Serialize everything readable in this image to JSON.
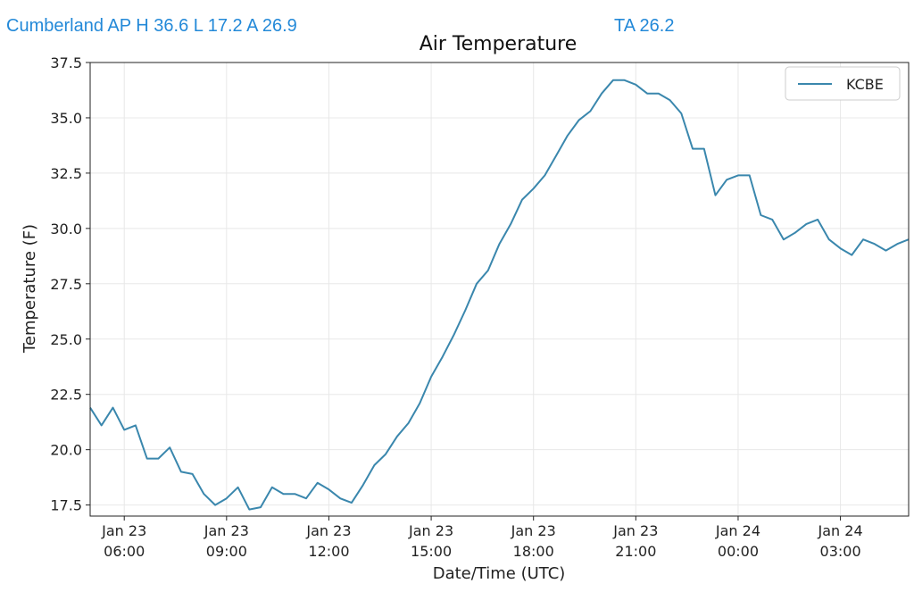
{
  "header": {
    "station_summary": "Cumberland AP H 36.6 L 17.2 A 26.9",
    "ta_summary": "TA 26.2"
  },
  "colors": {
    "header_text": "#2389d8",
    "series_line": "#3a87ad",
    "grid": "#e8e8e8"
  },
  "chart_data": {
    "type": "line",
    "title": "Air Temperature",
    "xlabel": "Date/Time (UTC)",
    "ylabel": "Temperature (F)",
    "ylim": [
      17,
      37.5
    ],
    "xlim": [
      "2021-01-23T05:00",
      "2021-01-24T05:00"
    ],
    "yticks": [
      "17.5",
      "20.0",
      "22.5",
      "25.0",
      "27.5",
      "30.0",
      "32.5",
      "35.0",
      "37.5"
    ],
    "xticks": [
      {
        "date": "Jan 23",
        "time": "06:00"
      },
      {
        "date": "Jan 23",
        "time": "09:00"
      },
      {
        "date": "Jan 23",
        "time": "12:00"
      },
      {
        "date": "Jan 23",
        "time": "15:00"
      },
      {
        "date": "Jan 23",
        "time": "18:00"
      },
      {
        "date": "Jan 23",
        "time": "21:00"
      },
      {
        "date": "Jan 24",
        "time": "00:00"
      },
      {
        "date": "Jan 24",
        "time": "03:00"
      }
    ],
    "grid": true,
    "legend_position": "top-right",
    "series": [
      {
        "name": "KCBE",
        "x": [
          "2021-01-23T05:00",
          "2021-01-23T05:20",
          "2021-01-23T05:40",
          "2021-01-23T06:00",
          "2021-01-23T06:20",
          "2021-01-23T06:40",
          "2021-01-23T07:00",
          "2021-01-23T07:20",
          "2021-01-23T07:40",
          "2021-01-23T08:00",
          "2021-01-23T08:20",
          "2021-01-23T08:40",
          "2021-01-23T09:00",
          "2021-01-23T09:20",
          "2021-01-23T09:40",
          "2021-01-23T10:00",
          "2021-01-23T10:20",
          "2021-01-23T10:40",
          "2021-01-23T11:00",
          "2021-01-23T11:20",
          "2021-01-23T11:40",
          "2021-01-23T12:00",
          "2021-01-23T12:20",
          "2021-01-23T12:40",
          "2021-01-23T13:00",
          "2021-01-23T13:20",
          "2021-01-23T13:40",
          "2021-01-23T14:00",
          "2021-01-23T14:20",
          "2021-01-23T14:40",
          "2021-01-23T15:00",
          "2021-01-23T15:20",
          "2021-01-23T15:40",
          "2021-01-23T16:00",
          "2021-01-23T16:20",
          "2021-01-23T16:40",
          "2021-01-23T17:00",
          "2021-01-23T17:20",
          "2021-01-23T17:40",
          "2021-01-23T18:00",
          "2021-01-23T18:20",
          "2021-01-23T18:40",
          "2021-01-23T19:00",
          "2021-01-23T19:20",
          "2021-01-23T19:40",
          "2021-01-23T20:00",
          "2021-01-23T20:20",
          "2021-01-23T20:40",
          "2021-01-23T21:00",
          "2021-01-23T21:20",
          "2021-01-23T21:40",
          "2021-01-23T22:00",
          "2021-01-23T22:20",
          "2021-01-23T22:40",
          "2021-01-23T23:00",
          "2021-01-23T23:20",
          "2021-01-23T23:40",
          "2021-01-24T00:00",
          "2021-01-24T00:20",
          "2021-01-24T00:40",
          "2021-01-24T01:00",
          "2021-01-24T01:20",
          "2021-01-24T01:40",
          "2021-01-24T02:00",
          "2021-01-24T02:20",
          "2021-01-24T02:40",
          "2021-01-24T03:00",
          "2021-01-24T03:20",
          "2021-01-24T03:40",
          "2021-01-24T04:00",
          "2021-01-24T04:20",
          "2021-01-24T04:40",
          "2021-01-24T05:00"
        ],
        "values": [
          21.9,
          21.1,
          21.9,
          20.9,
          21.1,
          19.6,
          19.6,
          20.1,
          19.0,
          18.9,
          18.0,
          17.5,
          17.8,
          18.3,
          17.3,
          17.4,
          18.3,
          18.0,
          18.0,
          17.8,
          18.5,
          18.2,
          17.8,
          17.6,
          18.4,
          19.3,
          19.8,
          20.6,
          21.2,
          22.1,
          23.3,
          24.2,
          25.2,
          26.3,
          27.5,
          28.1,
          29.3,
          30.2,
          31.3,
          31.8,
          32.4,
          33.3,
          34.2,
          34.9,
          35.3,
          36.1,
          36.7,
          36.7,
          36.5,
          36.1,
          36.1,
          35.8,
          35.2,
          33.6,
          33.6,
          31.5,
          32.2,
          32.4,
          32.4,
          30.6,
          30.4,
          29.5,
          29.8,
          30.2,
          30.4,
          29.5,
          29.1,
          28.8,
          29.5,
          29.3,
          29.0,
          29.3,
          29.5
        ]
      }
    ]
  }
}
